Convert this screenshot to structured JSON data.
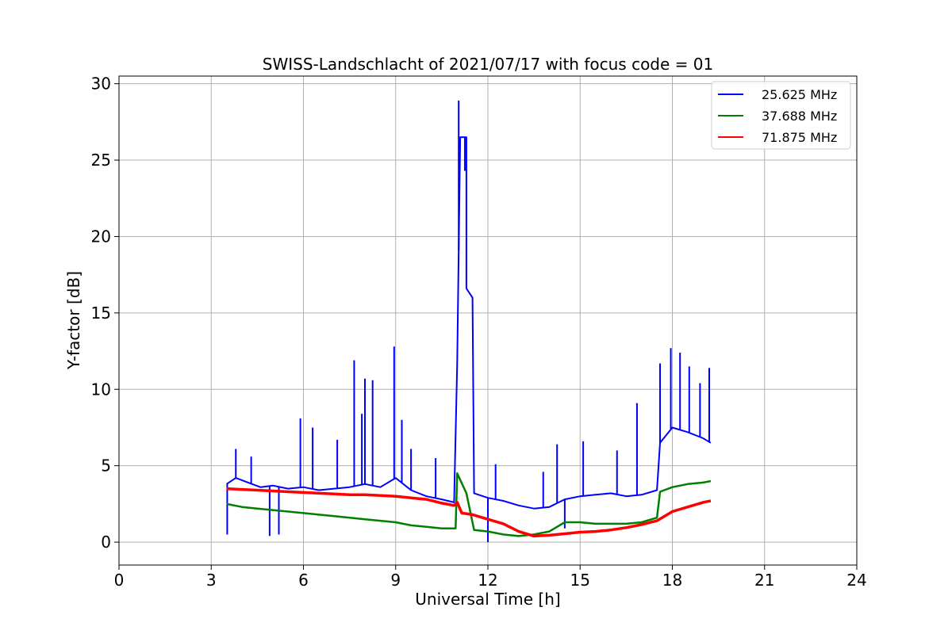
{
  "chart_data": {
    "type": "line",
    "title": "SWISS-Landschlacht of 2021/07/17 with focus code = 01",
    "xlabel": "Universal Time [h]",
    "ylabel": "Y-factor [dB]",
    "xlim": [
      0,
      24
    ],
    "ylim": [
      -1.5,
      30.5
    ],
    "xticks": [
      0,
      3,
      6,
      9,
      12,
      15,
      18,
      21,
      24
    ],
    "yticks": [
      0,
      5,
      10,
      15,
      20,
      25,
      30
    ],
    "grid": true,
    "legend_position": "top-right",
    "series": [
      {
        "name": "25.625 MHz",
        "color": "#0000ff",
        "points": [
          [
            3.5,
            3.8
          ],
          [
            3.8,
            4.2
          ],
          [
            4.2,
            3.9
          ],
          [
            4.6,
            3.6
          ],
          [
            5.0,
            3.7
          ],
          [
            5.5,
            3.5
          ],
          [
            6.0,
            3.6
          ],
          [
            6.5,
            3.4
          ],
          [
            7.0,
            3.5
          ],
          [
            7.5,
            3.6
          ],
          [
            8.0,
            3.8
          ],
          [
            8.5,
            3.6
          ],
          [
            9.0,
            4.2
          ],
          [
            9.5,
            3.4
          ],
          [
            10.0,
            3.0
          ],
          [
            10.5,
            2.8
          ],
          [
            10.9,
            2.6
          ],
          [
            11.0,
            11.7
          ],
          [
            11.1,
            26.5
          ],
          [
            11.3,
            26.5
          ],
          [
            11.3,
            16.6
          ],
          [
            11.5,
            16.0
          ],
          [
            11.55,
            3.2
          ],
          [
            12.0,
            2.9
          ],
          [
            12.5,
            2.7
          ],
          [
            13.0,
            2.4
          ],
          [
            13.5,
            2.2
          ],
          [
            14.0,
            2.3
          ],
          [
            14.5,
            2.8
          ],
          [
            15.0,
            3.0
          ],
          [
            15.5,
            3.1
          ],
          [
            16.0,
            3.2
          ],
          [
            16.5,
            3.0
          ],
          [
            17.0,
            3.1
          ],
          [
            17.5,
            3.4
          ],
          [
            17.6,
            6.5
          ],
          [
            18.0,
            7.5
          ],
          [
            18.5,
            7.2
          ],
          [
            19.0,
            6.8
          ],
          [
            19.25,
            6.5
          ]
        ],
        "spikes": [
          [
            3.52,
            0.5
          ],
          [
            3.8,
            6.1
          ],
          [
            4.3,
            5.6
          ],
          [
            4.9,
            0.4
          ],
          [
            5.2,
            0.5
          ],
          [
            5.9,
            8.1
          ],
          [
            6.3,
            7.5
          ],
          [
            7.1,
            6.7
          ],
          [
            7.65,
            11.9
          ],
          [
            7.9,
            8.4
          ],
          [
            8.0,
            10.7
          ],
          [
            8.25,
            10.6
          ],
          [
            8.95,
            12.8
          ],
          [
            9.2,
            8.0
          ],
          [
            9.5,
            6.1
          ],
          [
            10.3,
            5.5
          ],
          [
            11.05,
            28.9
          ],
          [
            11.25,
            24.3
          ],
          [
            12.25,
            5.1
          ],
          [
            12.0,
            0.0
          ],
          [
            13.8,
            4.6
          ],
          [
            14.25,
            6.4
          ],
          [
            15.1,
            6.6
          ],
          [
            16.2,
            6.0
          ],
          [
            16.85,
            9.1
          ],
          [
            17.6,
            11.7
          ],
          [
            17.95,
            12.7
          ],
          [
            18.25,
            12.4
          ],
          [
            18.55,
            11.5
          ],
          [
            18.9,
            10.4
          ],
          [
            19.2,
            11.4
          ],
          [
            14.5,
            0.9
          ]
        ]
      },
      {
        "name": "37.688 MHz",
        "color": "#008000",
        "points": [
          [
            3.5,
            2.5
          ],
          [
            4.0,
            2.3
          ],
          [
            4.5,
            2.2
          ],
          [
            5.0,
            2.1
          ],
          [
            5.5,
            2.0
          ],
          [
            6.0,
            1.9
          ],
          [
            6.5,
            1.8
          ],
          [
            7.0,
            1.7
          ],
          [
            7.5,
            1.6
          ],
          [
            8.0,
            1.5
          ],
          [
            8.5,
            1.4
          ],
          [
            9.0,
            1.3
          ],
          [
            9.5,
            1.1
          ],
          [
            10.0,
            1.0
          ],
          [
            10.5,
            0.9
          ],
          [
            10.95,
            0.9
          ],
          [
            11.0,
            4.5
          ],
          [
            11.3,
            3.2
          ],
          [
            11.55,
            0.8
          ],
          [
            12.0,
            0.7
          ],
          [
            12.5,
            0.5
          ],
          [
            13.0,
            0.4
          ],
          [
            13.5,
            0.5
          ],
          [
            14.0,
            0.7
          ],
          [
            14.5,
            1.3
          ],
          [
            15.0,
            1.3
          ],
          [
            15.5,
            1.2
          ],
          [
            16.0,
            1.2
          ],
          [
            16.5,
            1.2
          ],
          [
            17.0,
            1.3
          ],
          [
            17.5,
            1.6
          ],
          [
            17.6,
            3.3
          ],
          [
            18.0,
            3.6
          ],
          [
            18.5,
            3.8
          ],
          [
            19.0,
            3.9
          ],
          [
            19.25,
            4.0
          ]
        ]
      },
      {
        "name": "71.875 MHz",
        "color": "#ff0000",
        "points": [
          [
            3.5,
            3.5
          ],
          [
            4.0,
            3.45
          ],
          [
            4.5,
            3.4
          ],
          [
            5.0,
            3.35
          ],
          [
            5.5,
            3.3
          ],
          [
            6.0,
            3.25
          ],
          [
            6.5,
            3.2
          ],
          [
            7.0,
            3.15
          ],
          [
            7.5,
            3.1
          ],
          [
            8.0,
            3.1
          ],
          [
            8.5,
            3.05
          ],
          [
            9.0,
            3.0
          ],
          [
            9.5,
            2.9
          ],
          [
            10.0,
            2.8
          ],
          [
            10.5,
            2.55
          ],
          [
            10.9,
            2.4
          ],
          [
            11.0,
            2.6
          ],
          [
            11.15,
            1.9
          ],
          [
            11.5,
            1.8
          ],
          [
            12.0,
            1.5
          ],
          [
            12.5,
            1.2
          ],
          [
            13.0,
            0.7
          ],
          [
            13.5,
            0.4
          ],
          [
            14.0,
            0.45
          ],
          [
            14.5,
            0.55
          ],
          [
            15.0,
            0.65
          ],
          [
            15.5,
            0.7
          ],
          [
            16.0,
            0.8
          ],
          [
            16.5,
            0.95
          ],
          [
            17.0,
            1.15
          ],
          [
            17.5,
            1.4
          ],
          [
            18.0,
            2.0
          ],
          [
            18.5,
            2.3
          ],
          [
            19.0,
            2.6
          ],
          [
            19.25,
            2.7
          ]
        ]
      }
    ]
  }
}
